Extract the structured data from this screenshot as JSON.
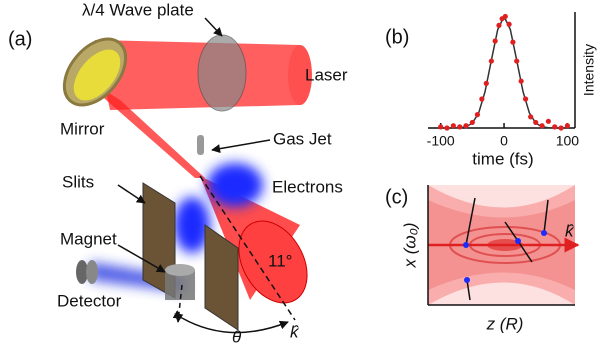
{
  "panel_labels": [
    "(a)",
    "(b)",
    "(c)"
  ],
  "setup": {
    "waveplate": "λ/4 Wave plate",
    "laser": "Laser",
    "mirror": "Mirror",
    "gas_jet": "Gas Jet",
    "slits": "Slits",
    "electrons": "Electrons",
    "magnet": "Magnet",
    "detector": "Detector",
    "angle": "11°",
    "theta": "θ",
    "k": "k̂"
  },
  "chart_data": {
    "type": "line",
    "xlabel": "time (fs)",
    "ylabel": "Intensity",
    "xlim": [
      -120,
      112
    ],
    "ylim": [
      0,
      1.04
    ],
    "xticks": [
      -100,
      0,
      100
    ],
    "series": [
      {
        "color": "#333333",
        "style": "line",
        "x": [
          -120,
          -110,
          -100,
          -90,
          -80,
          -70,
          -60,
          -50,
          -40,
          -30,
          -20,
          -10,
          0,
          10,
          20,
          30,
          40,
          50,
          60,
          70,
          80,
          90,
          100,
          110
        ],
        "values": [
          0,
          0,
          0,
          0,
          0,
          0.002,
          0.011,
          0.044,
          0.135,
          0.325,
          0.607,
          0.882,
          1,
          0.882,
          0.607,
          0.325,
          0.135,
          0.044,
          0.011,
          0.002,
          0,
          0,
          0,
          0
        ]
      },
      {
        "color": "#e02020",
        "style": "points",
        "x": [
          -100,
          -90,
          -80,
          -70,
          -60,
          -50,
          -42,
          -35,
          -28,
          -20,
          -14,
          -8,
          -3,
          2,
          8,
          14,
          20,
          27,
          34,
          42,
          50,
          60,
          70,
          80,
          90,
          100
        ],
        "values": [
          0.01,
          0.0,
          0.02,
          0.01,
          0.02,
          0.05,
          0.12,
          0.26,
          0.4,
          0.6,
          0.78,
          0.92,
          0.98,
          1.0,
          0.93,
          0.77,
          0.6,
          0.42,
          0.26,
          0.1,
          0.05,
          0.02,
          0.06,
          0.01,
          0.0,
          0.02
        ]
      }
    ]
  },
  "beam_panel": {
    "ylabel": "x (ω₀)",
    "xlabel": "z (R)",
    "k": "k̂"
  }
}
